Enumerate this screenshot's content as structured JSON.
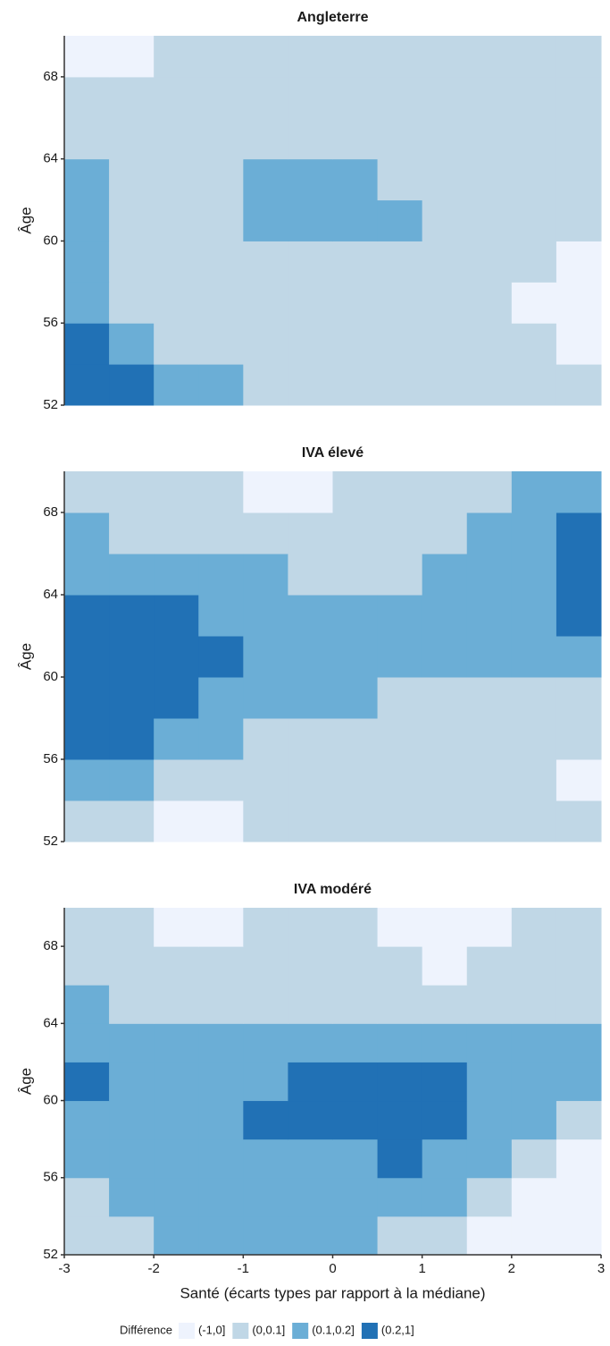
{
  "chart_data": [
    {
      "type": "heatmap",
      "title": "Angleterre",
      "y_label": "Âge",
      "xlim": [
        -3,
        3
      ],
      "ylim": [
        52,
        70
      ],
      "yticks": [
        52,
        56,
        60,
        64,
        68
      ],
      "values": [
        [
          3,
          3,
          2,
          2,
          1,
          1,
          1,
          1,
          1,
          1,
          1,
          1
        ],
        [
          3,
          2,
          1,
          1,
          1,
          1,
          1,
          1,
          1,
          1,
          1,
          0
        ],
        [
          2,
          1,
          1,
          1,
          1,
          1,
          1,
          1,
          1,
          1,
          0,
          0
        ],
        [
          2,
          1,
          1,
          1,
          1,
          1,
          1,
          1,
          1,
          1,
          1,
          0
        ],
        [
          2,
          1,
          1,
          1,
          2,
          2,
          2,
          2,
          1,
          1,
          1,
          1
        ],
        [
          2,
          1,
          1,
          1,
          2,
          2,
          2,
          1,
          1,
          1,
          1,
          1
        ],
        [
          1,
          1,
          1,
          1,
          1,
          1,
          1,
          1,
          1,
          1,
          1,
          1
        ],
        [
          1,
          1,
          1,
          1,
          1,
          1,
          1,
          1,
          1,
          1,
          1,
          1
        ],
        [
          0,
          0,
          1,
          1,
          1,
          1,
          1,
          1,
          1,
          1,
          1,
          1
        ]
      ]
    },
    {
      "type": "heatmap",
      "title": "IVA élevé",
      "y_label": "Âge",
      "xlim": [
        -3,
        3
      ],
      "ylim": [
        52,
        70
      ],
      "yticks": [
        52,
        56,
        60,
        64,
        68
      ],
      "values": [
        [
          1,
          1,
          0,
          0,
          1,
          1,
          1,
          1,
          1,
          1,
          1,
          1
        ],
        [
          2,
          2,
          1,
          1,
          1,
          1,
          1,
          1,
          1,
          1,
          1,
          0
        ],
        [
          3,
          3,
          2,
          2,
          1,
          1,
          1,
          1,
          1,
          1,
          1,
          1
        ],
        [
          3,
          3,
          3,
          2,
          2,
          2,
          2,
          1,
          1,
          1,
          1,
          1
        ],
        [
          3,
          3,
          3,
          3,
          2,
          2,
          2,
          2,
          2,
          2,
          2,
          2
        ],
        [
          3,
          3,
          3,
          2,
          2,
          2,
          2,
          2,
          2,
          2,
          2,
          3
        ],
        [
          2,
          2,
          2,
          2,
          2,
          1,
          1,
          1,
          2,
          2,
          2,
          3
        ],
        [
          2,
          1,
          1,
          1,
          1,
          1,
          1,
          1,
          1,
          2,
          2,
          3
        ],
        [
          1,
          1,
          1,
          1,
          0,
          0,
          1,
          1,
          1,
          1,
          2,
          2
        ]
      ]
    },
    {
      "type": "heatmap",
      "title": "IVA modéré",
      "y_label": "Âge",
      "x_label": "Santé (écarts types par rapport à la médiane)",
      "xlim": [
        -3,
        3
      ],
      "xticks": [
        -3,
        -2,
        -1,
        0,
        1,
        2,
        3
      ],
      "ylim": [
        52,
        70
      ],
      "yticks": [
        52,
        56,
        60,
        64,
        68
      ],
      "values": [
        [
          1,
          1,
          2,
          2,
          2,
          2,
          2,
          1,
          1,
          0,
          0,
          0
        ],
        [
          1,
          2,
          2,
          2,
          2,
          2,
          2,
          2,
          2,
          1,
          0,
          0
        ],
        [
          2,
          2,
          2,
          2,
          2,
          2,
          2,
          3,
          2,
          2,
          1,
          0
        ],
        [
          2,
          2,
          2,
          2,
          3,
          3,
          3,
          3,
          3,
          2,
          2,
          1
        ],
        [
          3,
          2,
          2,
          2,
          2,
          3,
          3,
          3,
          3,
          2,
          2,
          2
        ],
        [
          2,
          2,
          2,
          2,
          2,
          2,
          2,
          2,
          2,
          2,
          2,
          2
        ],
        [
          2,
          1,
          1,
          1,
          1,
          1,
          1,
          1,
          1,
          1,
          1,
          1
        ],
        [
          1,
          1,
          1,
          1,
          1,
          1,
          1,
          1,
          0,
          1,
          1,
          1
        ],
        [
          1,
          1,
          0,
          0,
          1,
          1,
          1,
          0,
          0,
          0,
          1,
          1
        ]
      ]
    }
  ],
  "legend": {
    "title": "Différence",
    "classes": [
      "(-1,0]",
      "(0,0.1]",
      "(0.1,0.2]",
      "(0.2,1]"
    ],
    "colors": [
      "#eef3fd",
      "#c0d7e6",
      "#6baed6",
      "#2171b5"
    ]
  }
}
